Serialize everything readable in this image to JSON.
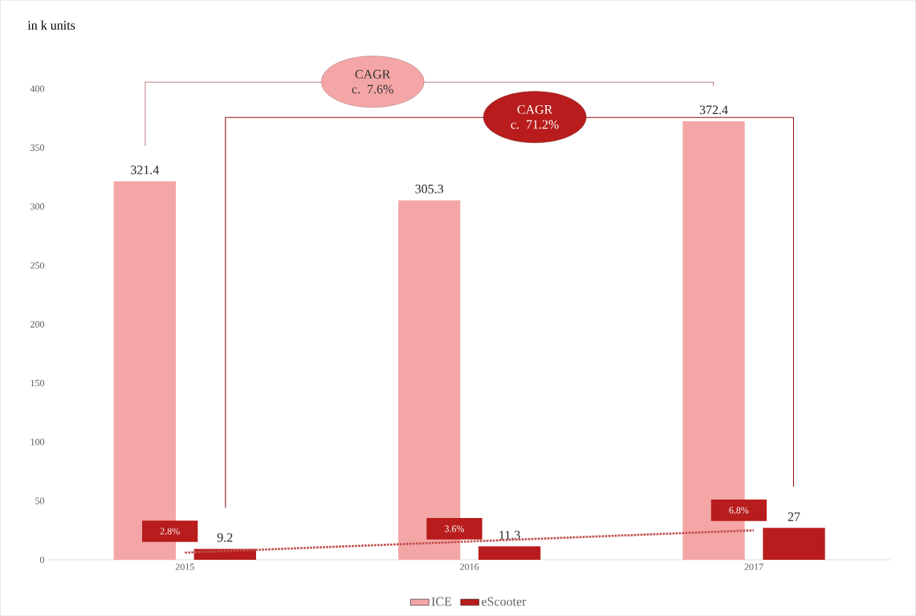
{
  "chart_data": {
    "type": "bar",
    "ylabel": "in k units",
    "categories": [
      "2015",
      "2016",
      "2017"
    ],
    "series": [
      {
        "name": "ICE",
        "color": "#f4a6a6",
        "values": [
          321.4,
          305.3,
          372.4
        ],
        "value_labels": [
          "321.4",
          "305.3",
          "372.4"
        ]
      },
      {
        "name": "eScooter",
        "color": "#b81c1c",
        "values": [
          9.2,
          11.3,
          27
        ],
        "value_labels": [
          "9.2",
          "11.3",
          "27"
        ]
      },
      {
        "type": "line",
        "color": "#c0504d",
        "values": [
          6,
          15.5,
          25
        ],
        "line_style": "dotted",
        "marker": "none"
      }
    ],
    "ylim": [
      0,
      400
    ],
    "yticks": [
      0,
      50,
      100,
      150,
      200,
      250,
      300,
      350,
      400
    ],
    "legend": "bottom",
    "grid": false,
    "annotations": [
      "CAGR c. 7.6%",
      "CAGR c. 71.2%",
      {
        "text": "2.8%",
        "x": "2015",
        "y": 9.2
      },
      {
        "text": "3.6%",
        "x": "2016",
        "y": 11.3
      },
      {
        "text": "6.8%",
        "x": "2017",
        "y": 27
      }
    ]
  }
}
